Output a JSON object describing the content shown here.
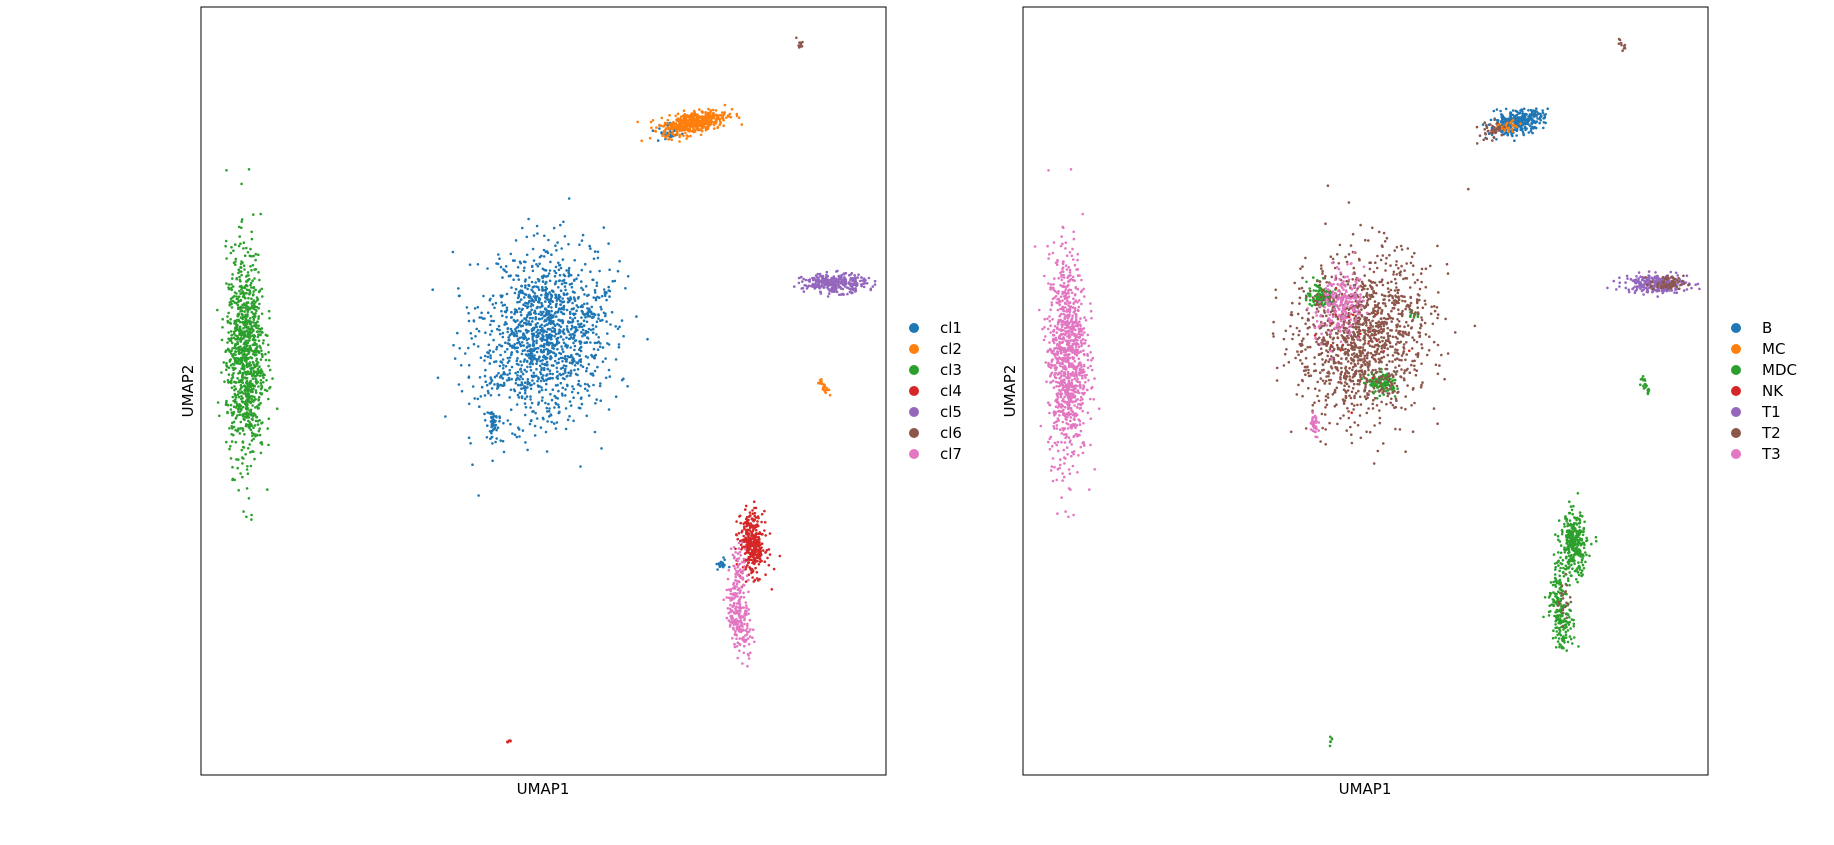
{
  "chart_data": [
    {
      "type": "scatter",
      "title": "",
      "xlabel": "UMAP1",
      "ylabel": "UMAP2",
      "xlim": [
        0,
        100
      ],
      "ylim": [
        0,
        100
      ],
      "grid": false,
      "ticks": "none",
      "legend_position": "right",
      "legend": [
        "cl1",
        "cl2",
        "cl3",
        "cl4",
        "cl5",
        "cl6",
        "cl7"
      ],
      "colors": {
        "cl1": "#1f77b4",
        "cl2": "#ff7f0e",
        "cl3": "#2ca02c",
        "cl4": "#d62728",
        "cl5": "#9467bd",
        "cl6": "#8c564b",
        "cl7": "#e377c2"
      },
      "series": [
        {
          "name": "cl1",
          "clusters": [
            {
              "x": 50,
              "y": 57,
              "sx": 4.6,
              "sy": 5.6,
              "rot": -18,
              "n": 1400
            },
            {
              "x": 68.5,
              "y": 84,
              "sx": 0.8,
              "sy": 0.6,
              "rot": 20,
              "n": 50
            },
            {
              "x": 57,
              "y": 60,
              "sx": 0.7,
              "sy": 0.3,
              "rot": 0,
              "n": 18
            },
            {
              "x": 42.5,
              "y": 45.5,
              "sx": 0.3,
              "sy": 1.0,
              "rot": 0,
              "n": 40
            },
            {
              "x": 76,
              "y": 27.5,
              "sx": 0.4,
              "sy": 0.4,
              "rot": 0,
              "n": 18
            },
            {
              "x": 42.5,
              "y": 50.5,
              "sx": 0.6,
              "sy": 0.2,
              "rot": 0,
              "n": 8
            }
          ]
        },
        {
          "name": "cl2",
          "clusters": [
            {
              "x": 72,
              "y": 85,
              "sx": 2.4,
              "sy": 0.7,
              "rot": 10,
              "n": 450
            },
            {
              "x": 91,
              "y": 50.5,
              "sx": 0.2,
              "sy": 0.6,
              "rot": 30,
              "n": 25
            }
          ]
        },
        {
          "name": "cl3",
          "clusters": [
            {
              "x": 6.5,
              "y": 54.5,
              "sx": 1.4,
              "sy": 6.8,
              "rot": 0,
              "n": 1000
            }
          ]
        },
        {
          "name": "cl4",
          "clusters": [
            {
              "x": 80.5,
              "y": 30,
              "sx": 0.9,
              "sy": 2.0,
              "rot": 5,
              "n": 350
            },
            {
              "x": 45,
              "y": 4.5,
              "sx": 0.15,
              "sy": 0.3,
              "rot": 0,
              "n": 6
            }
          ]
        },
        {
          "name": "cl5",
          "clusters": [
            {
              "x": 92.5,
              "y": 64,
              "sx": 2.3,
              "sy": 0.6,
              "rot": 0,
              "n": 320
            }
          ]
        },
        {
          "name": "cl6",
          "clusters": [
            {
              "x": 87.5,
              "y": 95,
              "sx": 0.2,
              "sy": 0.6,
              "rot": 30,
              "n": 10
            }
          ]
        },
        {
          "name": "cl7",
          "clusters": [
            {
              "x": 78.5,
              "y": 20.5,
              "sx": 0.8,
              "sy": 2.2,
              "rot": 10,
              "n": 200
            },
            {
              "x": 78.5,
              "y": 26,
              "sx": 0.6,
              "sy": 2.2,
              "rot": 0,
              "n": 80
            }
          ]
        }
      ]
    },
    {
      "type": "scatter",
      "title": "",
      "xlabel": "UMAP1",
      "ylabel": "UMAP2",
      "xlim": [
        0,
        100
      ],
      "ylim": [
        0,
        100
      ],
      "grid": false,
      "ticks": "none",
      "legend_position": "right",
      "legend": [
        "B",
        "MC",
        "MDC",
        "NK",
        "T1",
        "T2",
        "T3"
      ],
      "colors": {
        "B": "#1f77b4",
        "MC": "#ff7f0e",
        "MDC": "#2ca02c",
        "NK": "#d62728",
        "T1": "#9467bd",
        "T2": "#8c564b",
        "T3": "#e377c2"
      },
      "series": [
        {
          "name": "B",
          "clusters": [
            {
              "x": 72,
              "y": 85,
              "sx": 2.0,
              "sy": 0.7,
              "rot": 10,
              "n": 350
            },
            {
              "x": 45,
              "y": 62,
              "sx": 0.8,
              "sy": 0.6,
              "rot": 0,
              "n": 20
            }
          ]
        },
        {
          "name": "MC",
          "clusters": [
            {
              "x": 71,
              "y": 84.5,
              "sx": 1.0,
              "sy": 0.4,
              "rot": 10,
              "n": 30
            }
          ]
        },
        {
          "name": "MDC",
          "clusters": [
            {
              "x": 43.5,
              "y": 62.5,
              "sx": 1.0,
              "sy": 0.8,
              "rot": 0,
              "n": 120
            },
            {
              "x": 52.5,
              "y": 51,
              "sx": 1.0,
              "sy": 0.7,
              "rot": 0,
              "n": 120
            },
            {
              "x": 80.5,
              "y": 30,
              "sx": 0.9,
              "sy": 2.0,
              "rot": 5,
              "n": 300
            },
            {
              "x": 78.5,
              "y": 20.5,
              "sx": 0.8,
              "sy": 2.0,
              "rot": 10,
              "n": 160
            },
            {
              "x": 78.5,
              "y": 26,
              "sx": 0.6,
              "sy": 2.2,
              "rot": 0,
              "n": 60
            },
            {
              "x": 57,
              "y": 60,
              "sx": 0.5,
              "sy": 0.3,
              "rot": 0,
              "n": 12
            },
            {
              "x": 91,
              "y": 50.5,
              "sx": 0.2,
              "sy": 0.6,
              "rot": 30,
              "n": 20
            },
            {
              "x": 45,
              "y": 4.5,
              "sx": 0.15,
              "sy": 0.3,
              "rot": 0,
              "n": 6
            }
          ]
        },
        {
          "name": "NK",
          "clusters": [
            {
              "x": 49,
              "y": 56,
              "sx": 3.0,
              "sy": 3.0,
              "rot": 0,
              "n": 25
            }
          ]
        },
        {
          "name": "T1",
          "clusters": [
            {
              "x": 92.5,
              "y": 64,
              "sx": 2.3,
              "sy": 0.6,
              "rot": 0,
              "n": 280
            }
          ]
        },
        {
          "name": "T2",
          "clusters": [
            {
              "x": 49.5,
              "y": 57,
              "sx": 4.6,
              "sy": 5.4,
              "rot": -18,
              "n": 1300
            },
            {
              "x": 94,
              "y": 64,
              "sx": 1.2,
              "sy": 0.5,
              "rot": 0,
              "n": 60
            },
            {
              "x": 68.5,
              "y": 84,
              "sx": 0.8,
              "sy": 0.6,
              "rot": 20,
              "n": 40
            },
            {
              "x": 87.5,
              "y": 95,
              "sx": 0.2,
              "sy": 0.6,
              "rot": 30,
              "n": 10
            },
            {
              "x": 79,
              "y": 23,
              "sx": 0.5,
              "sy": 1.5,
              "rot": 0,
              "n": 20
            }
          ]
        },
        {
          "name": "T3",
          "clusters": [
            {
              "x": 6.5,
              "y": 54.5,
              "sx": 1.4,
              "sy": 6.8,
              "rot": 0,
              "n": 1000
            },
            {
              "x": 46.5,
              "y": 61,
              "sx": 1.6,
              "sy": 2.2,
              "rot": -20,
              "n": 220
            },
            {
              "x": 42.5,
              "y": 45.5,
              "sx": 0.3,
              "sy": 1.0,
              "rot": 0,
              "n": 40
            }
          ]
        }
      ]
    }
  ]
}
